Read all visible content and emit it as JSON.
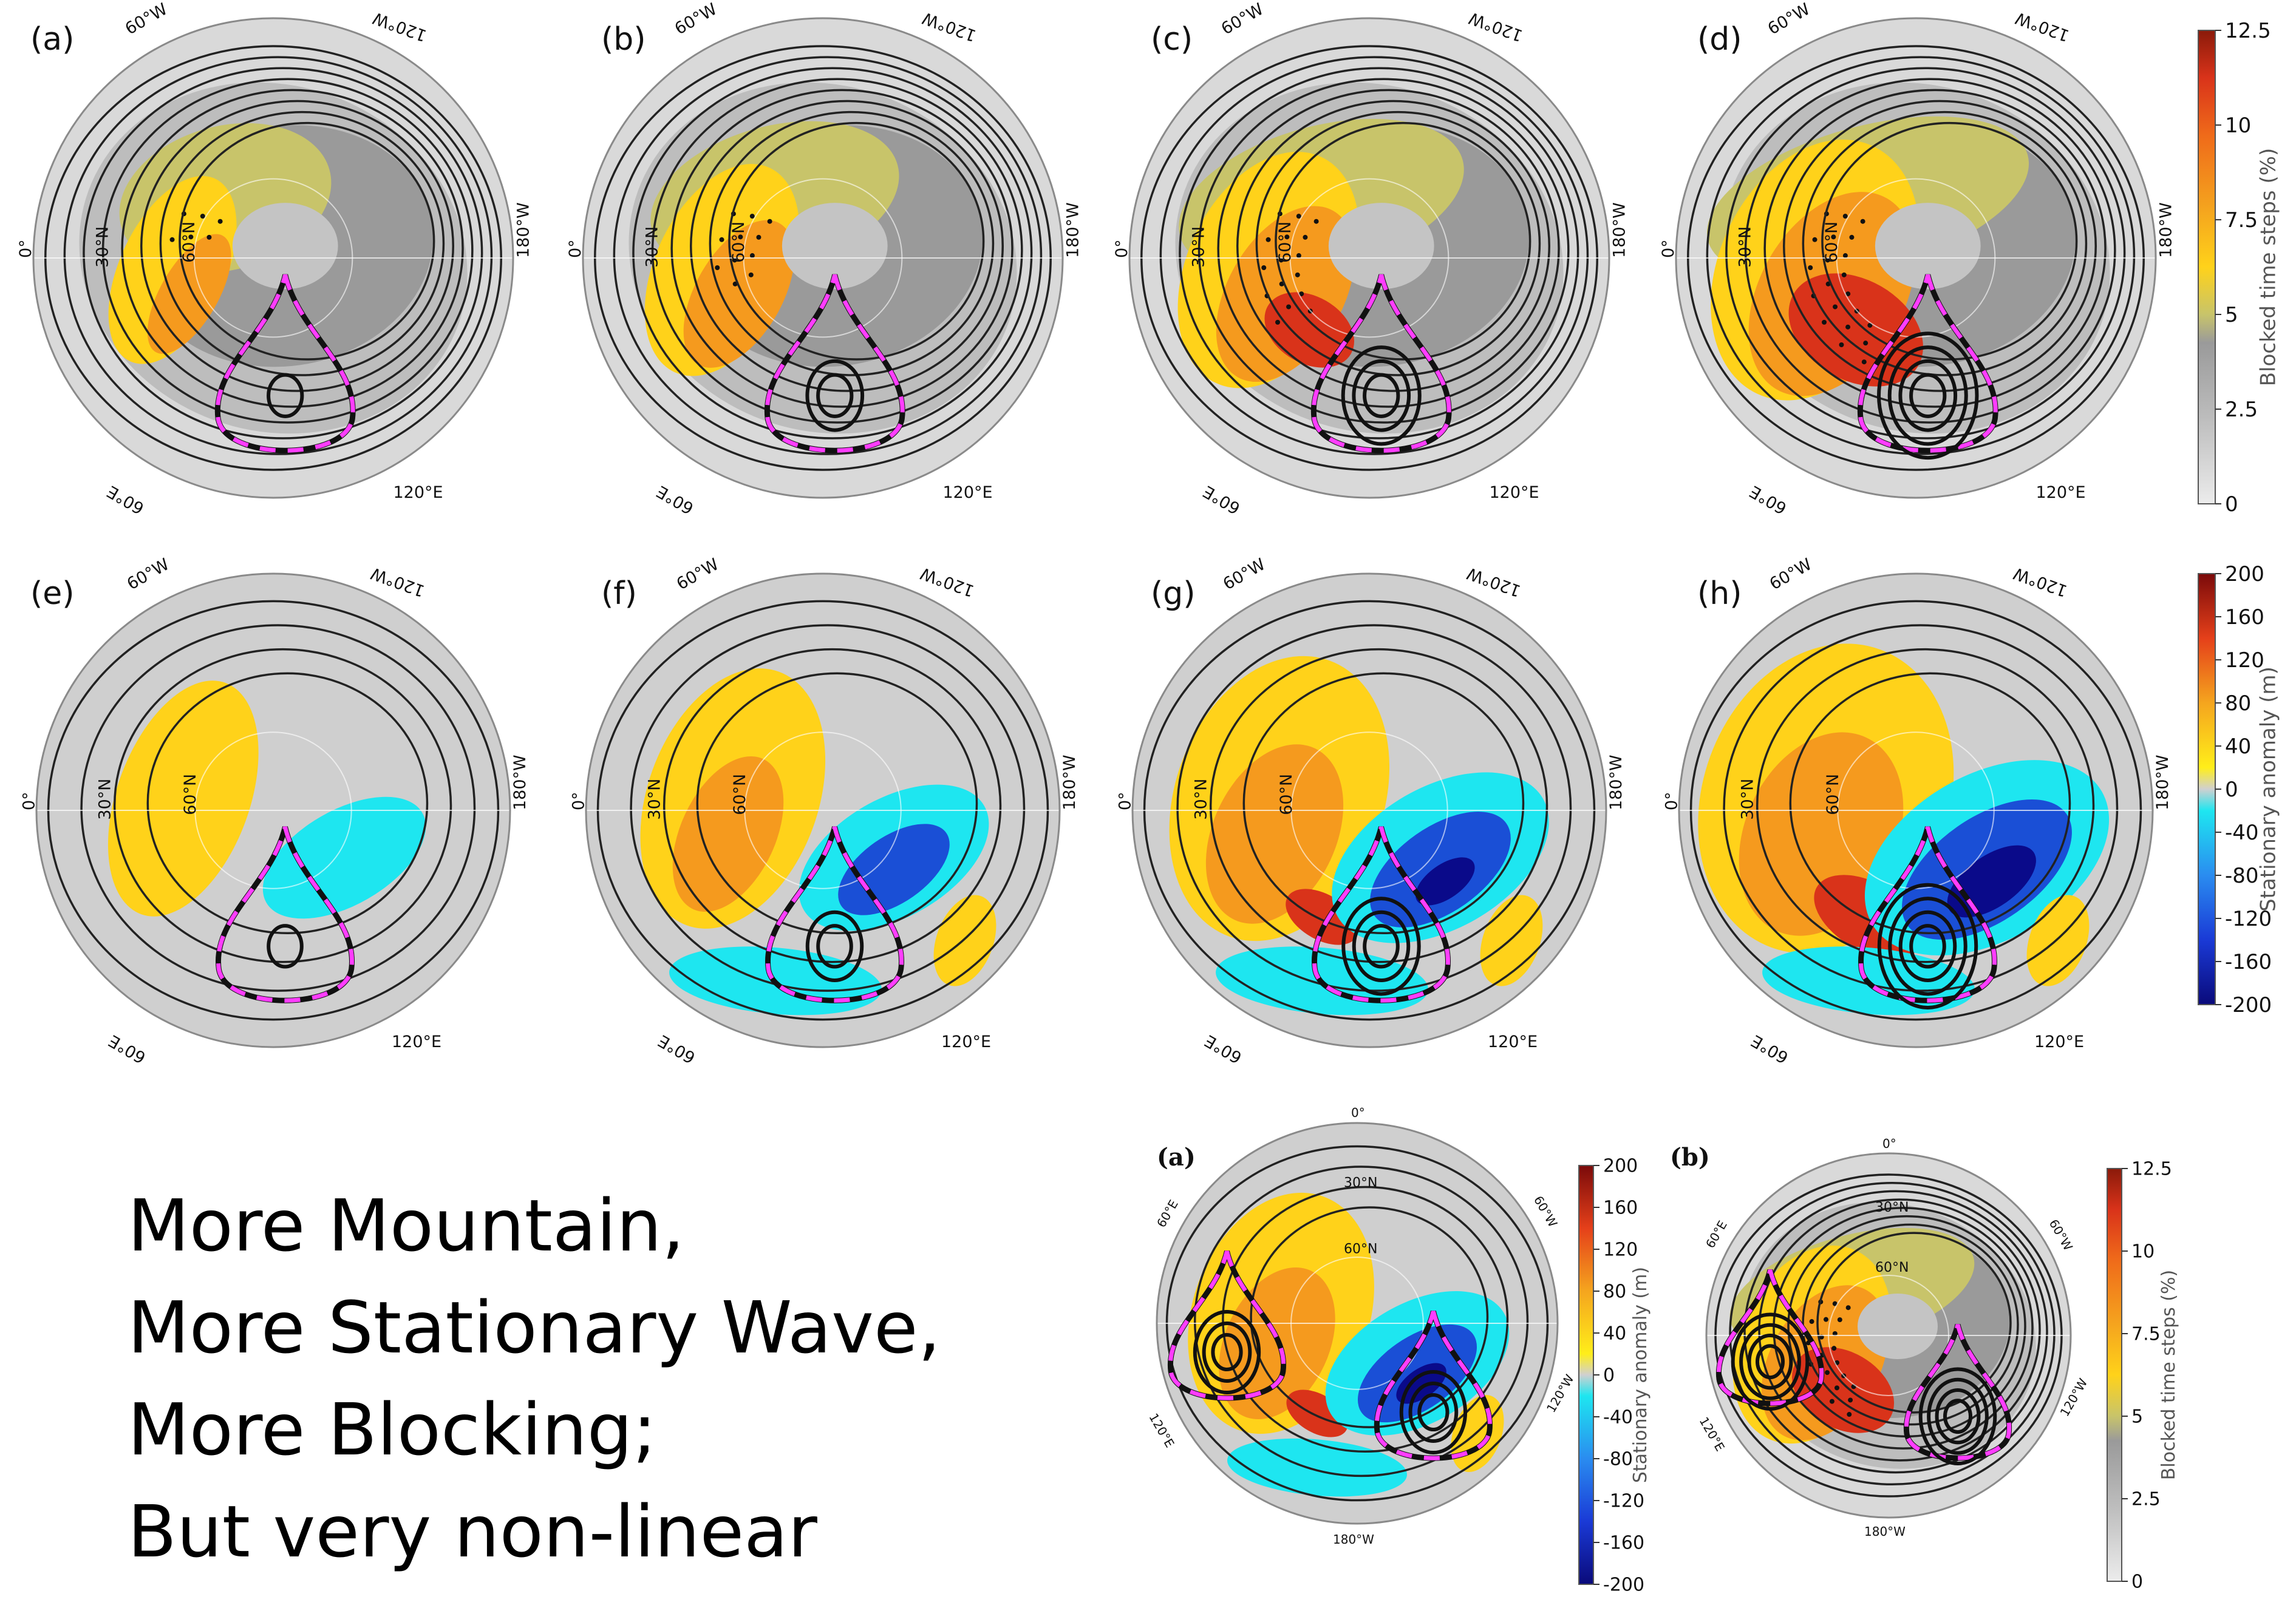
{
  "row1": {
    "panel_labels": [
      "(a)",
      "(b)",
      "(c)",
      "(d)"
    ],
    "colorbar": {
      "label": "Blocked time steps (%)",
      "ticks": [
        "0",
        "2.5",
        "5",
        "7.5",
        "10",
        "12.5"
      ]
    }
  },
  "row2": {
    "panel_labels": [
      "(e)",
      "(f)",
      "(g)",
      "(h)"
    ],
    "colorbar": {
      "label": "Stationary anomaly (m)",
      "ticks": [
        "-200",
        "-160",
        "-120",
        "-80",
        "-40",
        "0",
        "40",
        "80",
        "120",
        "160",
        "200"
      ]
    }
  },
  "map_labels": {
    "lon_0": "0°",
    "lon_60w": "60°W",
    "lon_120w": "120°W",
    "lon_180w": "180°W",
    "lon_120e": "120°E",
    "lon_60e": "60°E",
    "lat_30n": "30°N",
    "lat_60n": "60°N"
  },
  "inset": {
    "a": {
      "label": "(a)",
      "colorbar_label": "Stationary anomaly (m)",
      "ticks": [
        "-200",
        "-160",
        "-120",
        "-80",
        "-40",
        "0",
        "40",
        "80",
        "120",
        "160",
        "200"
      ]
    },
    "b": {
      "label": "(b)",
      "colorbar_label": "Blocked time steps (%)",
      "ticks": [
        "0",
        "2.5",
        "5",
        "7.5",
        "10",
        "12.5"
      ]
    }
  },
  "caption_lines": [
    "More Mountain,",
    "More Stationary Wave,",
    "More Blocking;",
    "But very non-linear"
  ],
  "colors": {
    "gray_dark": "#9a9a9a",
    "gray_mid": "#bdbdbd",
    "gray_light": "#d9d9d9",
    "olive": "#c8c46a",
    "yellow": "#ffd21a",
    "orange": "#f59a1e",
    "red": "#d9331a",
    "cyan": "#1ee6f0",
    "blue": "#1a4fd6",
    "navy": "#0a0a8a",
    "magenta": "#ff3dff",
    "contour": "#222222"
  }
}
